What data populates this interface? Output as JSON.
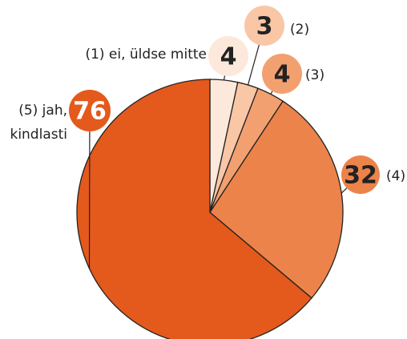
{
  "chart_data": {
    "type": "pie",
    "categories": [
      "(1) ei, üldse mitte",
      "(2)",
      "(3)",
      "(4)",
      "(5) jah, kindlasti"
    ],
    "values": [
      4,
      3,
      4,
      32,
      76
    ],
    "colors": [
      "#fde8dc",
      "#f9c6a6",
      "#f2a070",
      "#ec834a",
      "#e4591c"
    ]
  }
}
